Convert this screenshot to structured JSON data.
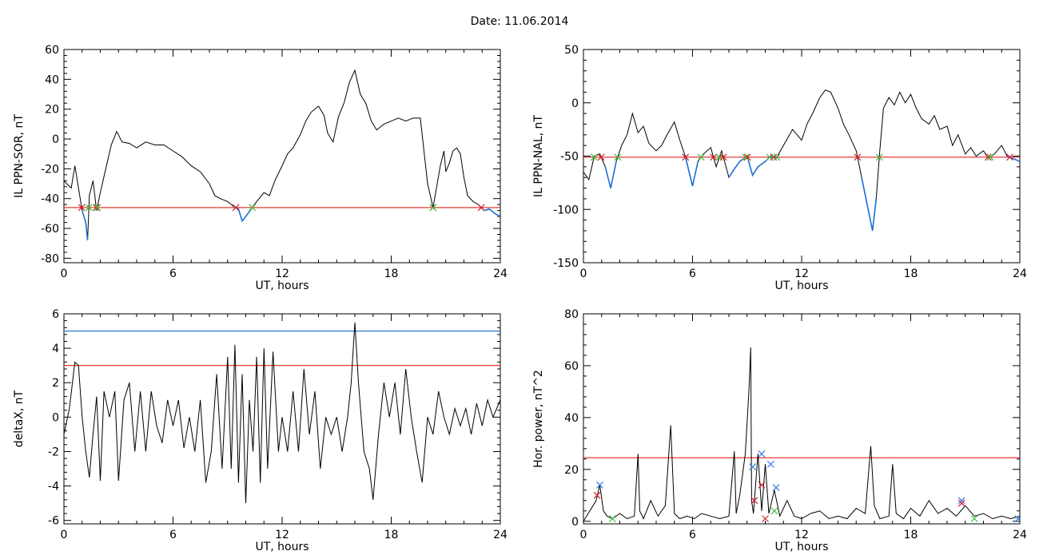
{
  "title": "Date:  11.06.2014",
  "colors": {
    "trace": "#000000",
    "highlight": "#1f6fd6",
    "threshold": "#e0241b",
    "marker_red": "#d0202a",
    "marker_green": "#38c23a",
    "marker_blue": "#2f7fe0"
  },
  "chart_data": [
    {
      "type": "line",
      "ylabel": "IL PPN-SOR, nT",
      "xlabel": "UT, hours",
      "xlim": [
        0,
        24
      ],
      "ylim": [
        -83,
        60
      ],
      "xticks": [
        0,
        6,
        12,
        18,
        24
      ],
      "yticks": [
        -80,
        -60,
        -40,
        -20,
        0,
        20,
        40,
        60
      ],
      "threshold": -46,
      "x": [
        0,
        0.4,
        0.6,
        0.8,
        1.0,
        1.2,
        1.3,
        1.4,
        1.6,
        1.8,
        2.0,
        2.3,
        2.6,
        2.9,
        3.2,
        3.6,
        4.0,
        4.5,
        5.0,
        5.5,
        6.0,
        6.5,
        7.0,
        7.5,
        8.0,
        8.3,
        8.6,
        9.0,
        9.3,
        9.6,
        9.8,
        10.0,
        10.3,
        10.6,
        11.0,
        11.3,
        11.6,
        12.0,
        12.3,
        12.6,
        13.0,
        13.3,
        13.6,
        14.0,
        14.3,
        14.5,
        14.8,
        15.1,
        15.4,
        15.7,
        16.0,
        16.3,
        16.6,
        16.9,
        17.2,
        17.6,
        18.0,
        18.4,
        18.8,
        19.2,
        19.6,
        20.0,
        20.3,
        20.5,
        20.7,
        20.9,
        21.0,
        21.2,
        21.4,
        21.6,
        21.8,
        22.0,
        22.2,
        22.5,
        22.8,
        23.1,
        23.4,
        23.7,
        24.0
      ],
      "y": [
        -28,
        -33,
        -18,
        -33,
        -48,
        -56,
        -68,
        -38,
        -28,
        -48,
        -36,
        -20,
        -4,
        5,
        -2,
        -3,
        -6,
        -2,
        -4,
        -4,
        -8,
        -12,
        -18,
        -22,
        -30,
        -38,
        -40,
        -42,
        -45,
        -47,
        -55,
        -52,
        -47,
        -42,
        -36,
        -38,
        -28,
        -18,
        -10,
        -6,
        3,
        12,
        18,
        22,
        16,
        4,
        -2,
        15,
        24,
        38,
        46,
        30,
        24,
        12,
        6,
        10,
        12,
        14,
        12,
        14,
        14,
        -30,
        -46,
        -32,
        -18,
        -8,
        -22,
        -16,
        -8,
        -6,
        -10,
        -26,
        -38,
        -42,
        -44,
        -48,
        -47,
        -50,
        -52
      ]
    },
    {
      "type": "line",
      "ylabel": "IL PPN-NAL, nT",
      "xlabel": "UT, hours",
      "xlim": [
        0,
        24
      ],
      "ylim": [
        -150,
        50
      ],
      "xticks": [
        0,
        6,
        12,
        18,
        24
      ],
      "yticks": [
        -150,
        -100,
        -50,
        0,
        50
      ],
      "threshold": -51,
      "x": [
        0,
        0.3,
        0.6,
        0.9,
        1.2,
        1.5,
        1.8,
        2.1,
        2.4,
        2.7,
        3.0,
        3.3,
        3.6,
        4.0,
        4.3,
        4.6,
        5.0,
        5.3,
        5.6,
        6.0,
        6.3,
        6.6,
        7.0,
        7.3,
        7.6,
        8.0,
        8.3,
        8.6,
        9.0,
        9.3,
        9.6,
        10.0,
        10.3,
        10.6,
        11.0,
        11.5,
        12.0,
        12.3,
        12.6,
        13.0,
        13.3,
        13.6,
        14.0,
        14.3,
        14.6,
        15.0,
        15.3,
        15.6,
        15.9,
        16.1,
        16.3,
        16.5,
        16.8,
        17.1,
        17.4,
        17.7,
        18.0,
        18.3,
        18.6,
        19.0,
        19.3,
        19.6,
        20.0,
        20.3,
        20.6,
        21.0,
        21.3,
        21.6,
        22.0,
        22.3,
        22.6,
        23.0,
        23.3,
        23.6,
        24.0
      ],
      "y": [
        -65,
        -72,
        -50,
        -48,
        -60,
        -80,
        -55,
        -40,
        -30,
        -10,
        -28,
        -22,
        -38,
        -45,
        -40,
        -30,
        -18,
        -35,
        -50,
        -78,
        -55,
        -48,
        -42,
        -60,
        -45,
        -70,
        -62,
        -55,
        -50,
        -68,
        -60,
        -55,
        -50,
        -52,
        -40,
        -25,
        -35,
        -20,
        -10,
        5,
        12,
        10,
        -5,
        -20,
        -30,
        -45,
        -70,
        -95,
        -120,
        -90,
        -45,
        -5,
        5,
        -2,
        10,
        0,
        8,
        -5,
        -15,
        -20,
        -12,
        -25,
        -22,
        -40,
        -30,
        -48,
        -42,
        -50,
        -45,
        -52,
        -48,
        -40,
        -50,
        -52,
        -55
      ],
      "highlight_ranges": [
        [
          0.5,
          2.0
        ],
        [
          4.0,
          11.0
        ],
        [
          15.0,
          16.2
        ],
        [
          21.0,
          21.5
        ],
        [
          22.5,
          24.0
        ]
      ]
    },
    {
      "type": "line",
      "ylabel": "deltaX, nT",
      "xlabel": "UT, hours",
      "xlim": [
        0,
        24
      ],
      "ylim": [
        -6.2,
        6
      ],
      "xticks": [
        0,
        6,
        12,
        18,
        24
      ],
      "yticks": [
        -6,
        -4,
        -2,
        0,
        2,
        4,
        6
      ],
      "thresholds": [
        3,
        5
      ],
      "x": [
        0,
        0.3,
        0.6,
        0.8,
        1.0,
        1.2,
        1.4,
        1.6,
        1.8,
        2.0,
        2.2,
        2.5,
        2.8,
        3.0,
        3.3,
        3.6,
        3.9,
        4.2,
        4.5,
        4.8,
        5.1,
        5.4,
        5.7,
        6.0,
        6.3,
        6.6,
        6.9,
        7.2,
        7.5,
        7.8,
        8.1,
        8.4,
        8.7,
        9.0,
        9.2,
        9.4,
        9.6,
        9.8,
        10.0,
        10.2,
        10.4,
        10.6,
        10.8,
        11.0,
        11.2,
        11.5,
        11.8,
        12.0,
        12.3,
        12.6,
        12.9,
        13.2,
        13.5,
        13.8,
        14.1,
        14.4,
        14.7,
        15.0,
        15.3,
        15.6,
        15.8,
        16.0,
        16.2,
        16.5,
        16.8,
        17.0,
        17.3,
        17.6,
        17.9,
        18.2,
        18.5,
        18.8,
        19.1,
        19.4,
        19.7,
        20.0,
        20.3,
        20.6,
        20.9,
        21.2,
        21.5,
        21.8,
        22.1,
        22.4,
        22.7,
        23.0,
        23.3,
        23.6,
        24.0
      ],
      "y": [
        -1,
        0.5,
        3.2,
        3,
        0,
        -2,
        -3.5,
        -1,
        1.2,
        -3.7,
        1.5,
        0,
        1.5,
        -3.7,
        1,
        2,
        -2,
        1.5,
        -2,
        1.5,
        -0.5,
        -1.5,
        1,
        -0.5,
        1,
        -1.8,
        0,
        -2,
        1,
        -3.8,
        -2,
        2.5,
        -3,
        3.5,
        -3,
        4.2,
        -3.8,
        2.5,
        -5,
        1,
        -2,
        3.5,
        -3.8,
        4,
        -3,
        3.8,
        -2,
        0,
        -2,
        1.5,
        -2,
        2.8,
        -1,
        1.5,
        -3,
        0,
        -1,
        0,
        -2,
        0,
        2,
        5.5,
        2,
        -2,
        -3,
        -4.8,
        -1,
        2,
        0,
        2,
        -1,
        2.8,
        0,
        -2,
        -3.8,
        0,
        -1,
        1.5,
        0,
        -1,
        0.5,
        -0.5,
        0.5,
        -1,
        0.8,
        -0.5,
        1,
        0,
        1
      ]
    },
    {
      "type": "line",
      "ylabel": "Hor. power, nT^2",
      "xlabel": "UT, hours",
      "xlim": [
        0,
        24
      ],
      "ylim": [
        -1,
        80
      ],
      "xticks": [
        0,
        6,
        12,
        18,
        24
      ],
      "yticks": [
        0,
        20,
        40,
        60,
        80
      ],
      "threshold": 24.5,
      "x": [
        0,
        0.7,
        0.9,
        1.1,
        1.3,
        1.6,
        2.0,
        2.4,
        2.8,
        3.0,
        3.1,
        3.3,
        3.7,
        4.1,
        4.5,
        4.8,
        5.0,
        5.3,
        5.7,
        6.1,
        6.5,
        7.0,
        7.5,
        8.0,
        8.3,
        8.4,
        8.6,
        8.9,
        9.1,
        9.2,
        9.25,
        9.35,
        9.6,
        9.8,
        10.0,
        10.2,
        10.5,
        10.8,
        11.2,
        11.6,
        12.0,
        12.5,
        13.0,
        13.5,
        14.0,
        14.5,
        15.0,
        15.5,
        15.8,
        16.0,
        16.3,
        16.8,
        17.0,
        17.2,
        17.6,
        18.0,
        18.5,
        19.0,
        19.5,
        20.0,
        20.5,
        21.0,
        21.5,
        22.0,
        22.5,
        23.0,
        23.5,
        24.0
      ],
      "y": [
        0,
        8,
        14,
        4,
        2,
        1,
        3,
        1,
        2,
        26,
        4,
        1,
        8,
        2,
        6,
        37,
        3,
        1,
        2,
        1,
        3,
        2,
        1,
        2,
        27,
        3,
        10,
        26,
        50,
        67,
        8,
        3,
        26,
        4,
        22,
        3,
        12,
        2,
        8,
        2,
        1,
        3,
        4,
        1,
        2,
        1,
        5,
        3,
        29,
        6,
        1,
        2,
        22,
        3,
        1,
        5,
        2,
        8,
        3,
        5,
        2,
        6,
        2,
        3,
        1,
        2,
        1,
        2
      ]
    }
  ]
}
